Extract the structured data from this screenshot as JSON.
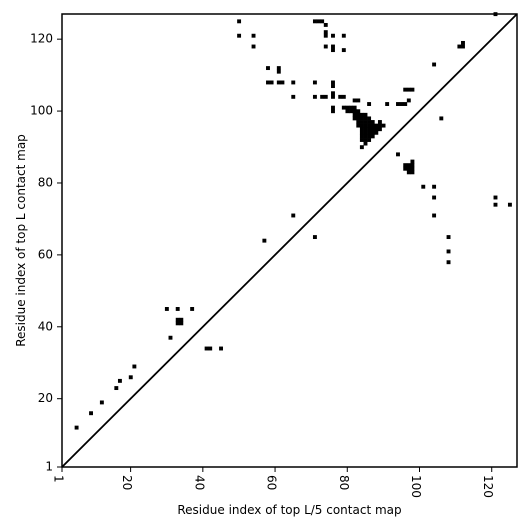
{
  "chart_data": {
    "type": "heatmap",
    "title": "",
    "xlabel": "Residue index of top L/5 contact map",
    "ylabel": "Residue index of top L contact map",
    "xlim": [
      1,
      127
    ],
    "ylim": [
      1,
      127
    ],
    "xticks": [
      1,
      20,
      40,
      60,
      80,
      100,
      120
    ],
    "yticks": [
      1,
      20,
      40,
      60,
      80,
      100,
      120
    ],
    "diagonal": true,
    "grid": false,
    "cell_color": "#000000",
    "points": [
      [
        5,
        12
      ],
      [
        9,
        16
      ],
      [
        12,
        19
      ],
      [
        16,
        23
      ],
      [
        17,
        25
      ],
      [
        20,
        26
      ],
      [
        21,
        29
      ],
      [
        30,
        45
      ],
      [
        31,
        37
      ],
      [
        33,
        45
      ],
      [
        33,
        42
      ],
      [
        34,
        42
      ],
      [
        33,
        41
      ],
      [
        34,
        41
      ],
      [
        37,
        45
      ],
      [
        41,
        34
      ],
      [
        42,
        34
      ],
      [
        45,
        34
      ],
      [
        50,
        125
      ],
      [
        50,
        121
      ],
      [
        54,
        121
      ],
      [
        54,
        118
      ],
      [
        57,
        64
      ],
      [
        58,
        112
      ],
      [
        58,
        108
      ],
      [
        59,
        108
      ],
      [
        61,
        112
      ],
      [
        61,
        111
      ],
      [
        61,
        108
      ],
      [
        62,
        108
      ],
      [
        65,
        108
      ],
      [
        65,
        104
      ],
      [
        65,
        71
      ],
      [
        71,
        125
      ],
      [
        72,
        125
      ],
      [
        73,
        125
      ],
      [
        74,
        124
      ],
      [
        74,
        122
      ],
      [
        74,
        121
      ],
      [
        74,
        118
      ],
      [
        71,
        108
      ],
      [
        71,
        104
      ],
      [
        73,
        104
      ],
      [
        74,
        104
      ],
      [
        71,
        65
      ],
      [
        76,
        121
      ],
      [
        76,
        118
      ],
      [
        76,
        117
      ],
      [
        76,
        108
      ],
      [
        76,
        107
      ],
      [
        76,
        105
      ],
      [
        76,
        104
      ],
      [
        76,
        101
      ],
      [
        76,
        100
      ],
      [
        79,
        121
      ],
      [
        79,
        117
      ],
      [
        78,
        104
      ],
      [
        79,
        104
      ],
      [
        79,
        101
      ],
      [
        80,
        101
      ],
      [
        81,
        101
      ],
      [
        82,
        101
      ],
      [
        80,
        100
      ],
      [
        81,
        100
      ],
      [
        82,
        100
      ],
      [
        83,
        100
      ],
      [
        82,
        103
      ],
      [
        83,
        103
      ],
      [
        82,
        99
      ],
      [
        83,
        99
      ],
      [
        84,
        99
      ],
      [
        85,
        99
      ],
      [
        82,
        98
      ],
      [
        83,
        98
      ],
      [
        84,
        98
      ],
      [
        85,
        98
      ],
      [
        86,
        98
      ],
      [
        83,
        97
      ],
      [
        84,
        97
      ],
      [
        85,
        97
      ],
      [
        86,
        97
      ],
      [
        87,
        97
      ],
      [
        89,
        97
      ],
      [
        83,
        96
      ],
      [
        84,
        96
      ],
      [
        85,
        96
      ],
      [
        86,
        96
      ],
      [
        87,
        96
      ],
      [
        88,
        96
      ],
      [
        89,
        96
      ],
      [
        90,
        96
      ],
      [
        84,
        95
      ],
      [
        85,
        95
      ],
      [
        86,
        95
      ],
      [
        87,
        95
      ],
      [
        88,
        95
      ],
      [
        89,
        95
      ],
      [
        84,
        94
      ],
      [
        85,
        94
      ],
      [
        86,
        94
      ],
      [
        87,
        94
      ],
      [
        88,
        94
      ],
      [
        84,
        93
      ],
      [
        85,
        93
      ],
      [
        86,
        93
      ],
      [
        87,
        93
      ],
      [
        85,
        92
      ],
      [
        86,
        92
      ],
      [
        84,
        92
      ],
      [
        85,
        91
      ],
      [
        84,
        90
      ],
      [
        86,
        102
      ],
      [
        91,
        102
      ],
      [
        94,
        102
      ],
      [
        95,
        102
      ],
      [
        96,
        102
      ],
      [
        97,
        103
      ],
      [
        96,
        106
      ],
      [
        97,
        106
      ],
      [
        98,
        106
      ],
      [
        94,
        88
      ],
      [
        96,
        85
      ],
      [
        97,
        85
      ],
      [
        98,
        85
      ],
      [
        96,
        84
      ],
      [
        97,
        84
      ],
      [
        98,
        84
      ],
      [
        97,
        83
      ],
      [
        98,
        83
      ],
      [
        98,
        86
      ],
      [
        101,
        79
      ],
      [
        104,
        79
      ],
      [
        104,
        76
      ],
      [
        104,
        71
      ],
      [
        104,
        113
      ],
      [
        106,
        98
      ],
      [
        108,
        65
      ],
      [
        108,
        61
      ],
      [
        108,
        58
      ],
      [
        111,
        118
      ],
      [
        112,
        118
      ],
      [
        112,
        119
      ],
      [
        121,
        127
      ],
      [
        121,
        76
      ],
      [
        121,
        74
      ],
      [
        125,
        74
      ]
    ]
  }
}
